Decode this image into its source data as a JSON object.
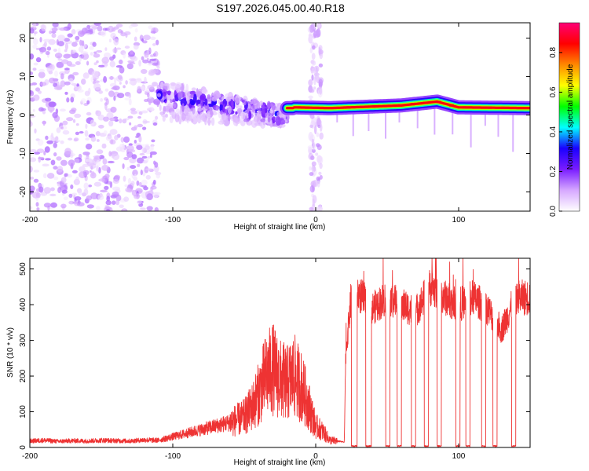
{
  "chart_data": {
    "title": "S197.2026.045.00.40.R18",
    "panels": [
      {
        "type": "heatmap",
        "xlabel": "Height of straight line (km)",
        "ylabel": "Frequency (Hz)",
        "xlim": [
          -200,
          150
        ],
        "ylim": [
          -25,
          24
        ],
        "xticks": [
          -200,
          -100,
          0,
          100
        ],
        "yticks": [
          -20,
          -10,
          0,
          10,
          20
        ],
        "colorbar": {
          "label": "Normalized spectral amplitude",
          "range": [
            0,
            0.95
          ],
          "ticks": [
            "0.0",
            "0.2",
            "0.4",
            "0.6",
            "0.8"
          ],
          "tick_values": [
            0,
            0.2,
            0.4,
            0.6,
            0.8
          ],
          "colors": [
            "#ffffff",
            "#d6a8ff",
            "#7a1cff",
            "#1a00ff",
            "#00ffff",
            "#00ff00",
            "#ffff00",
            "#ff8800",
            "#ff0000",
            "#ff0077"
          ]
        },
        "features": [
          {
            "name": "noise",
            "x_range": [
              -200,
              -110
            ],
            "freq_range": [
              -25,
              24
            ],
            "amplitude": 0.12
          },
          {
            "name": "descending-band",
            "x_range": [
              -110,
              -20
            ],
            "freq_start": 5,
            "freq_end": 0,
            "amplitude": 0.22
          },
          {
            "name": "vertical-streak",
            "x": 0,
            "freq_range": [
              -25,
              24
            ],
            "amplitude": 0.1
          },
          {
            "name": "carrier-line",
            "x_range": [
              -20,
              150
            ],
            "freq_points": [
              [
                -15,
                2
              ],
              [
                10,
                1.8
              ],
              [
                60,
                2.5
              ],
              [
                85,
                3.5
              ],
              [
                100,
                2
              ],
              [
                150,
                1.8
              ]
            ],
            "amplitude": 0.7
          }
        ]
      },
      {
        "type": "line",
        "xlabel": "Height of straight line (km)",
        "ylabel": "SNR (10 * v/v)",
        "xlim": [
          -200,
          150
        ],
        "ylim": [
          0,
          530
        ],
        "xticks": [
          -200,
          -100,
          0,
          100
        ],
        "yticks": [
          0,
          100,
          200,
          300,
          400,
          500
        ],
        "series": [
          {
            "name": "SNR",
            "color": "#ee3333",
            "x": [
              -200,
              -190,
              -180,
              -170,
              -160,
              -150,
              -140,
              -130,
              -120,
              -110,
              -100,
              -90,
              -80,
              -70,
              -60,
              -50,
              -45,
              -40,
              -35,
              -30,
              -25,
              -20,
              -15,
              -10,
              -5,
              0,
              5,
              10,
              15,
              20,
              21,
              25,
              30,
              40,
              50,
              60,
              70,
              80,
              90,
              100,
              110,
              120,
              130,
              140,
              150
            ],
            "values": [
              18,
              20,
              17,
              19,
              18,
              20,
              19,
              18,
              21,
              20,
              30,
              40,
              50,
              60,
              70,
              85,
              110,
              150,
              200,
              220,
              190,
              180,
              200,
              170,
              120,
              60,
              45,
              20,
              18,
              15,
              260,
              430,
              430,
              390,
              420,
              400,
              380,
              450,
              420,
              400,
              420,
              390,
              330,
              420,
              420
            ],
            "dropouts": [
              [
                25,
                29
              ],
              [
                35,
                39
              ],
              [
                49,
                52
              ],
              [
                57,
                60
              ],
              [
                67,
                70
              ],
              [
                76,
                79
              ],
              [
                85,
                88
              ],
              [
                98,
                101
              ],
              [
                105,
                108
              ],
              [
                116,
                119
              ],
              [
                124,
                127
              ],
              [
                137,
                140
              ]
            ]
          }
        ]
      }
    ]
  }
}
